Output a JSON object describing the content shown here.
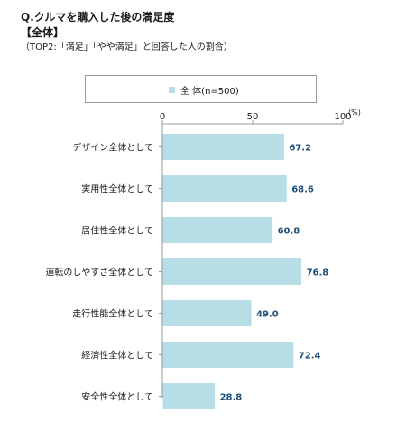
{
  "header": {
    "title": "Q.クルマを購入した後の満足度",
    "subtitle": "【全体】",
    "note": "（TOP2:「満足」「やや満足」と回答した人の割合）"
  },
  "legend": {
    "label": "全 体(n=500)",
    "color": "#b7dde6"
  },
  "chart_data": {
    "type": "bar",
    "orientation": "horizontal",
    "categories": [
      "デザイン全体として",
      "実用性全体として",
      "居住性全体として",
      "運転のしやすさ全体として",
      "走行性能全体として",
      "経済性全体として",
      "安全性全体として"
    ],
    "series": [
      {
        "name": "全 体(n=500)",
        "values": [
          67.2,
          68.6,
          60.8,
          76.8,
          49.0,
          72.4,
          28.8
        ]
      }
    ],
    "xlim": [
      0,
      100
    ],
    "ticks": [
      "0",
      "50",
      "100"
    ],
    "unit": "(%)",
    "value_labels": [
      "67.2",
      "68.6",
      "60.8",
      "76.8",
      "49.0",
      "72.4",
      "28.8"
    ],
    "bar_color": "#b7dde6",
    "value_label_color": "#1f4e79",
    "legend_position": "top"
  }
}
